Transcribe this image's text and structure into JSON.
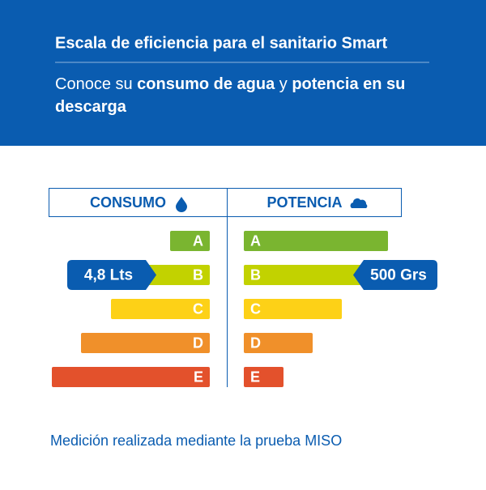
{
  "header": {
    "title": "Escala de eficiencia para el sanitario Smart",
    "subtitle": [
      {
        "text": "Conoce su ",
        "bold": false
      },
      {
        "text": "consumo de agua",
        "bold": true
      },
      {
        "text": " y ",
        "bold": false
      },
      {
        "text": "potencia en su descarga",
        "bold": true
      }
    ]
  },
  "scale": {
    "grades": [
      "A",
      "B",
      "C",
      "D",
      "E"
    ],
    "colors": [
      "#7ab530",
      "#c2d200",
      "#fdd117",
      "#f0902a",
      "#e3512c"
    ],
    "consumption": {
      "heading": "CONSUMO",
      "indicator": {
        "label": "4,8 Lts",
        "grade": "B"
      }
    },
    "power": {
      "heading": "POTENCIA",
      "indicator": {
        "label": "500 Grs",
        "grade": "B"
      }
    }
  },
  "footer": "Medición realizada mediante la prueba MISO"
}
